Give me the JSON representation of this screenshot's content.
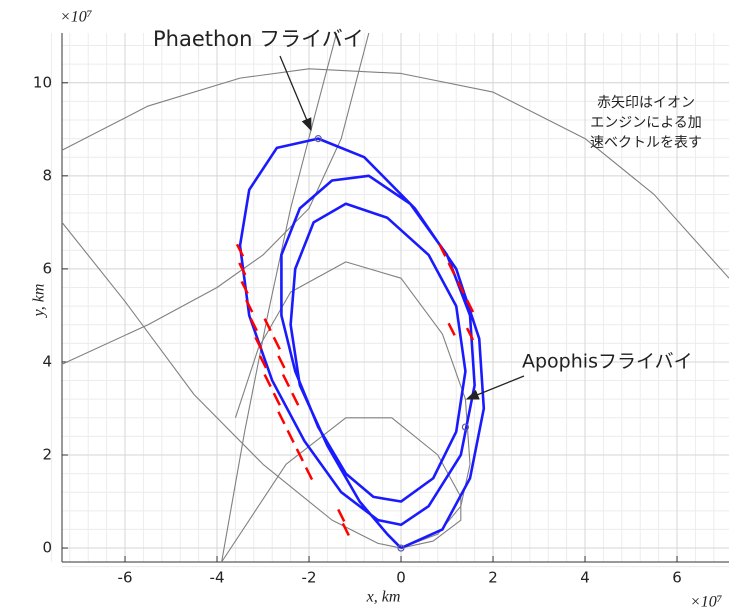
{
  "chart_data": {
    "type": "line",
    "xlabel": "x, km",
    "ylabel": "y, km",
    "x_exponent": "×10⁷",
    "y_exponent": "×10⁷",
    "xlim": [
      -7.37,
      7.13
    ],
    "ylim": [
      -0.3,
      11.07
    ],
    "xticks": [
      -6,
      -4,
      -2,
      0,
      2,
      4,
      6
    ],
    "yticks": [
      0,
      2,
      4,
      6,
      8,
      10
    ],
    "grid": true,
    "minor_divisions": 5,
    "annotations": [
      "Phaethon フライバイ",
      "Apophisフライバイ"
    ],
    "note": [
      "赤矢印はイオン",
      "エンジンによる加",
      "速ベクトルを表す"
    ],
    "series": [
      {
        "mode": "line",
        "color": "#808080",
        "x": [
          -7.37,
          -5.5,
          -3.5,
          -2,
          0,
          2,
          4,
          5.5,
          7.13
        ],
        "y": [
          8.55,
          9.5,
          10.1,
          10.3,
          10.2,
          9.8,
          8.8,
          7.6,
          5.8
        ]
      },
      {
        "mode": "line",
        "color": "#808080",
        "x": [
          -7.37,
          -5.5,
          -4,
          -3,
          -2,
          -1.3,
          -0.7
        ],
        "y": [
          3.95,
          4.8,
          5.6,
          6.3,
          7.3,
          8.8,
          11.07
        ]
      },
      {
        "mode": "line",
        "color": "#808080",
        "x": [
          -7.37,
          -6,
          -4.5,
          -3,
          -1.5,
          -0.5,
          0
        ],
        "y": [
          7,
          5.3,
          3.3,
          1.8,
          0.6,
          0.1,
          0
        ]
      },
      {
        "mode": "line",
        "color": "#808080",
        "x": [
          -3.9,
          -3.4,
          -2.9,
          -2.4,
          -1.9,
          -1.4
        ],
        "y": [
          -0.3,
          2.5,
          5,
          7.3,
          9.2,
          11.07
        ]
      },
      {
        "mode": "line",
        "color": "#808080",
        "x": [
          -3.6,
          -3.1,
          -2.4,
          -1.2,
          0,
          0.9,
          1.4,
          1.5,
          1.3,
          0.8,
          0
        ],
        "y": [
          2.8,
          4.3,
          5.5,
          6.15,
          5.8,
          4.6,
          3.2,
          1.8,
          0.9,
          0.3,
          0
        ]
      },
      {
        "mode": "line",
        "color": "#808080",
        "x": [
          -3.9,
          -2.5,
          -1.2,
          -0.2,
          0.8,
          1.3,
          1.3,
          0.7,
          0
        ],
        "y": [
          -0.3,
          1.8,
          2.8,
          2.8,
          2.0,
          1.1,
          0.6,
          0.15,
          0
        ]
      },
      {
        "mode": "line",
        "color": "#1a1aff",
        "x": [
          0,
          0.9,
          1.5,
          1.8,
          1.7,
          1.2,
          0.3,
          -0.8,
          -1.8,
          -2.7,
          -3.3,
          -3.5,
          -3.3,
          -2.8,
          -2.1,
          -1.3,
          -0.5,
          0,
          0.6,
          1.3,
          1.6,
          1.5,
          1.0,
          0.2,
          -0.7,
          -1.5,
          -2.2,
          -2.6,
          -2.6,
          -2.3,
          -1.8,
          -1.2,
          -0.6,
          0,
          0.7,
          1.2,
          1.4,
          1.2,
          0.6,
          -0.3,
          -1.2,
          -1.9,
          -2.3,
          -2.4,
          -2.2,
          -1.6,
          -0.9,
          -0.3,
          0
        ],
        "y": [
          0,
          0.4,
          1.5,
          3,
          4.5,
          6,
          7.3,
          8.4,
          8.8,
          8.6,
          7.7,
          6.5,
          5,
          3.6,
          2.3,
          1.2,
          0.6,
          0.5,
          0.9,
          2,
          3.5,
          5,
          6.3,
          7.4,
          8,
          7.9,
          7.3,
          6.3,
          5,
          3.8,
          2.6,
          1.6,
          1.1,
          1.0,
          1.5,
          2.5,
          3.8,
          5.2,
          6.3,
          7.1,
          7.4,
          7.0,
          6.0,
          4.8,
          3.5,
          2.2,
          1.0,
          0.3,
          0
        ]
      },
      {
        "mode": "scatter",
        "color": "#ff0000",
        "x": [
          -3.5,
          -3.45,
          -3.4,
          -3.3,
          -3.2,
          -3.1,
          -3.0,
          -2.9,
          -2.7,
          -2.6,
          -2.4,
          -2.2,
          -2.0,
          -2.9,
          -2.7,
          -2.6,
          -2.5,
          -2.3,
          -1.3,
          -1.2,
          0.9,
          1.1,
          1.3,
          1.5,
          1.1,
          1.5
        ],
        "y": [
          6.4,
          6.0,
          5.6,
          5.2,
          4.8,
          4.4,
          4.0,
          3.6,
          3.2,
          2.8,
          2.4,
          2.0,
          1.6,
          4.8,
          4.4,
          4.0,
          3.6,
          3.2,
          0.7,
          0.4,
          6.4,
          6.0,
          5.6,
          5.2,
          4.7,
          4.6
        ]
      },
      {
        "mode": "marker",
        "color": "#5a5aa0",
        "x": [
          -1.8,
          1.4,
          0
        ],
        "y": [
          8.8,
          2.6,
          0
        ]
      }
    ]
  }
}
